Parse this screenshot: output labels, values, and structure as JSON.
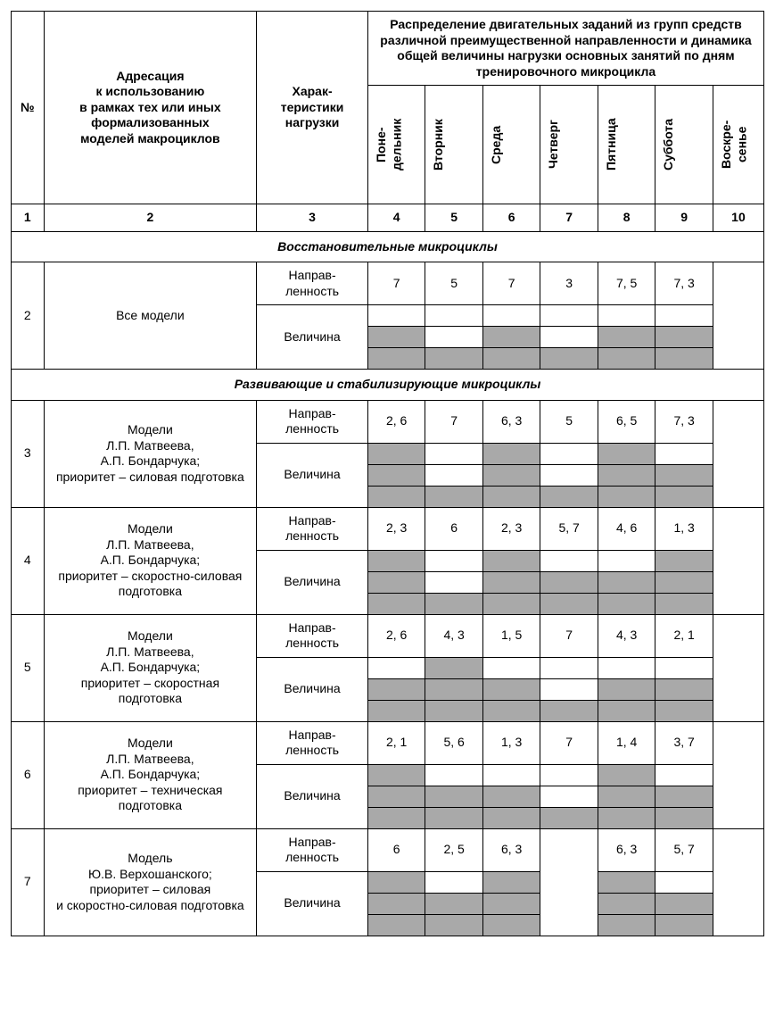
{
  "headers": {
    "num": "№",
    "addressing": "Адресация\nк использованию\nв рамках тех или иных\nформализованных\nмоделей макроциклов",
    "char": "Харак-\nтеристики\nнагрузки",
    "distribution": "Распределение двигательных заданий из групп средств различной преимущественной направленности и динамика общей величины нагрузки основных занятий по дням тренировочного микроцикла",
    "days": {
      "mon": "Поне-\nдельник",
      "tue": "Вторник",
      "wed": "Среда",
      "thu": "Четверг",
      "fri": "Пятница",
      "sat": "Суббота",
      "sun": "Воскре-\nсенье"
    },
    "cols": {
      "c1": "1",
      "c2": "2",
      "c3": "3",
      "c4": "4",
      "c5": "5",
      "c6": "6",
      "c7": "7",
      "c8": "8",
      "c9": "9",
      "c10": "10"
    }
  },
  "labels": {
    "direction": "Направ-\nленность",
    "value": "Величина"
  },
  "sections": {
    "s1": "Восстановительные микроциклы",
    "s2": "Развивающие и стабилизирующие микроциклы"
  },
  "rows": {
    "r2": {
      "num": "2",
      "addr": "Все модели",
      "dir": {
        "mon": "7",
        "tue": "5",
        "wed": "7",
        "thu": "3",
        "fri": "7, 5",
        "sat": "7, 3",
        "sun": ""
      },
      "mag": {
        "row1": {
          "mon": 0,
          "tue": 0,
          "wed": 0,
          "thu": 0,
          "fri": 0,
          "sat": 0
        },
        "row2": {
          "mon": 1,
          "tue": 0,
          "wed": 1,
          "thu": 0,
          "fri": 1,
          "sat": 1
        },
        "row3": {
          "mon": 1,
          "tue": 1,
          "wed": 1,
          "thu": 1,
          "fri": 1,
          "sat": 1
        }
      }
    },
    "r3": {
      "num": "3",
      "addr": "Модели\nЛ.П. Матвеева,\nА.П. Бондарчука;\nприоритет – силовая подготовка",
      "dir": {
        "mon": "2, 6",
        "tue": "7",
        "wed": "6, 3",
        "thu": "5",
        "fri": "6, 5",
        "sat": "7, 3",
        "sun": ""
      },
      "mag": {
        "row1": {
          "mon": 1,
          "tue": 0,
          "wed": 1,
          "thu": 0,
          "fri": 1,
          "sat": 0
        },
        "row2": {
          "mon": 1,
          "tue": 0,
          "wed": 1,
          "thu": 0,
          "fri": 1,
          "sat": 1
        },
        "row3": {
          "mon": 1,
          "tue": 1,
          "wed": 1,
          "thu": 1,
          "fri": 1,
          "sat": 1
        }
      }
    },
    "r4": {
      "num": "4",
      "addr": "Модели\nЛ.П. Матвеева,\nА.П. Бондарчука;\nприоритет – скоростно-силовая подготовка",
      "dir": {
        "mon": "2, 3",
        "tue": "6",
        "wed": "2, 3",
        "thu": "5, 7",
        "fri": "4, 6",
        "sat": "1, 3",
        "sun": ""
      },
      "mag": {
        "row1": {
          "mon": 1,
          "tue": 0,
          "wed": 1,
          "thu": 0,
          "fri": 0,
          "sat": 1
        },
        "row2": {
          "mon": 1,
          "tue": 0,
          "wed": 1,
          "thu": 1,
          "fri": 1,
          "sat": 1
        },
        "row3": {
          "mon": 1,
          "tue": 1,
          "wed": 1,
          "thu": 1,
          "fri": 1,
          "sat": 1
        }
      }
    },
    "r5": {
      "num": "5",
      "addr": "Модели\nЛ.П. Матвеева,\nА.П. Бондарчука;\nприоритет – скоростная подготовка",
      "dir": {
        "mon": "2, 6",
        "tue": "4, 3",
        "wed": "1, 5",
        "thu": "7",
        "fri": "4, 3",
        "sat": "2, 1",
        "sun": ""
      },
      "mag": {
        "row1": {
          "mon": 0,
          "tue": 1,
          "wed": 0,
          "thu": 0,
          "fri": 0,
          "sat": 0
        },
        "row2": {
          "mon": 1,
          "tue": 1,
          "wed": 1,
          "thu": 0,
          "fri": 1,
          "sat": 1
        },
        "row3": {
          "mon": 1,
          "tue": 1,
          "wed": 1,
          "thu": 1,
          "fri": 1,
          "sat": 1
        }
      }
    },
    "r6": {
      "num": "6",
      "addr": "Модели\nЛ.П. Матвеева,\nА.П. Бондарчука;\nприоритет – техническая подготовка",
      "dir": {
        "mon": "2, 1",
        "tue": "5, 6",
        "wed": "1, 3",
        "thu": "7",
        "fri": "1, 4",
        "sat": "3, 7",
        "sun": ""
      },
      "mag": {
        "row1": {
          "mon": 1,
          "tue": 0,
          "wed": 0,
          "thu": 0,
          "fri": 1,
          "sat": 0
        },
        "row2": {
          "mon": 1,
          "tue": 1,
          "wed": 1,
          "thu": 0,
          "fri": 1,
          "sat": 1
        },
        "row3": {
          "mon": 1,
          "tue": 1,
          "wed": 1,
          "thu": 1,
          "fri": 1,
          "sat": 1
        }
      }
    },
    "r7": {
      "num": "7",
      "addr": "Модель\nЮ.В. Верхошанского;\nприоритет – силовая\nи скоростно-силовая подготовка",
      "dir": {
        "mon": "6",
        "tue": "2, 5",
        "wed": "6, 3",
        "thu": "",
        "fri": "6, 3",
        "sat": "5, 7",
        "sun": ""
      },
      "mag": {
        "row1": {
          "mon": 1,
          "tue": 0,
          "wed": 1,
          "fri": 1,
          "sat": 0
        },
        "row2": {
          "mon": 1,
          "tue": 1,
          "wed": 1,
          "fri": 1,
          "sat": 1
        },
        "row3": {
          "mon": 1,
          "tue": 1,
          "wed": 1,
          "fri": 1,
          "sat": 1
        }
      }
    }
  },
  "colors": {
    "grey": "#a9a9a9",
    "border": "#000000",
    "bg": "#ffffff"
  }
}
